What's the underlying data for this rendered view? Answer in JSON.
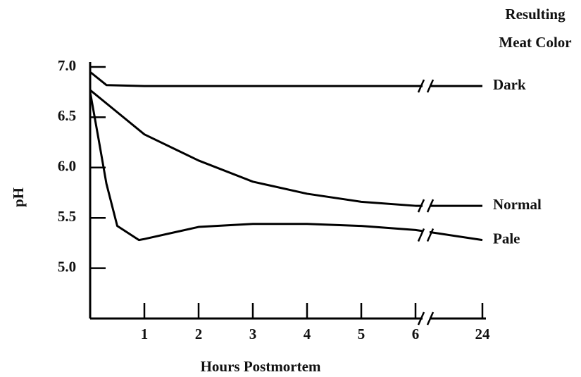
{
  "chart_data": {
    "type": "line",
    "x_label": "Hours Postmortem",
    "y_label": "pH",
    "legend_title": [
      "Resulting",
      "Meat Color"
    ],
    "xlim": [
      0,
      24
    ],
    "x_break": [
      6,
      24
    ],
    "xticks": [
      1,
      2,
      3,
      4,
      5,
      6,
      24
    ],
    "ylim": [
      4.5,
      7.0
    ],
    "yticks": [
      {
        "value": 7,
        "label": "7.0"
      },
      6.5,
      {
        "value": 6,
        "label": "6.0"
      },
      5.5,
      {
        "value": 5,
        "label": "5.0"
      }
    ],
    "series": [
      {
        "name": "Dark",
        "color": "#000000",
        "x": [
          0,
          0.3,
          1,
          2,
          3,
          4,
          5,
          6,
          24
        ],
        "values": [
          6.95,
          6.82,
          6.81,
          6.81,
          6.81,
          6.81,
          6.81,
          6.81,
          6.81
        ]
      },
      {
        "name": "Normal",
        "color": "#000000",
        "x": [
          0,
          0.5,
          1,
          2,
          3,
          4,
          5,
          6,
          24
        ],
        "values": [
          6.77,
          6.55,
          6.33,
          6.07,
          5.86,
          5.74,
          5.66,
          5.62,
          5.62
        ]
      },
      {
        "name": "Pale",
        "color": "#000000",
        "x": [
          0,
          0.15,
          0.3,
          0.5,
          0.9,
          1,
          2,
          3,
          4,
          5,
          6,
          24
        ],
        "values": [
          6.75,
          6.3,
          5.84,
          5.42,
          5.28,
          5.29,
          5.41,
          5.44,
          5.44,
          5.42,
          5.38,
          5.28
        ]
      }
    ]
  }
}
